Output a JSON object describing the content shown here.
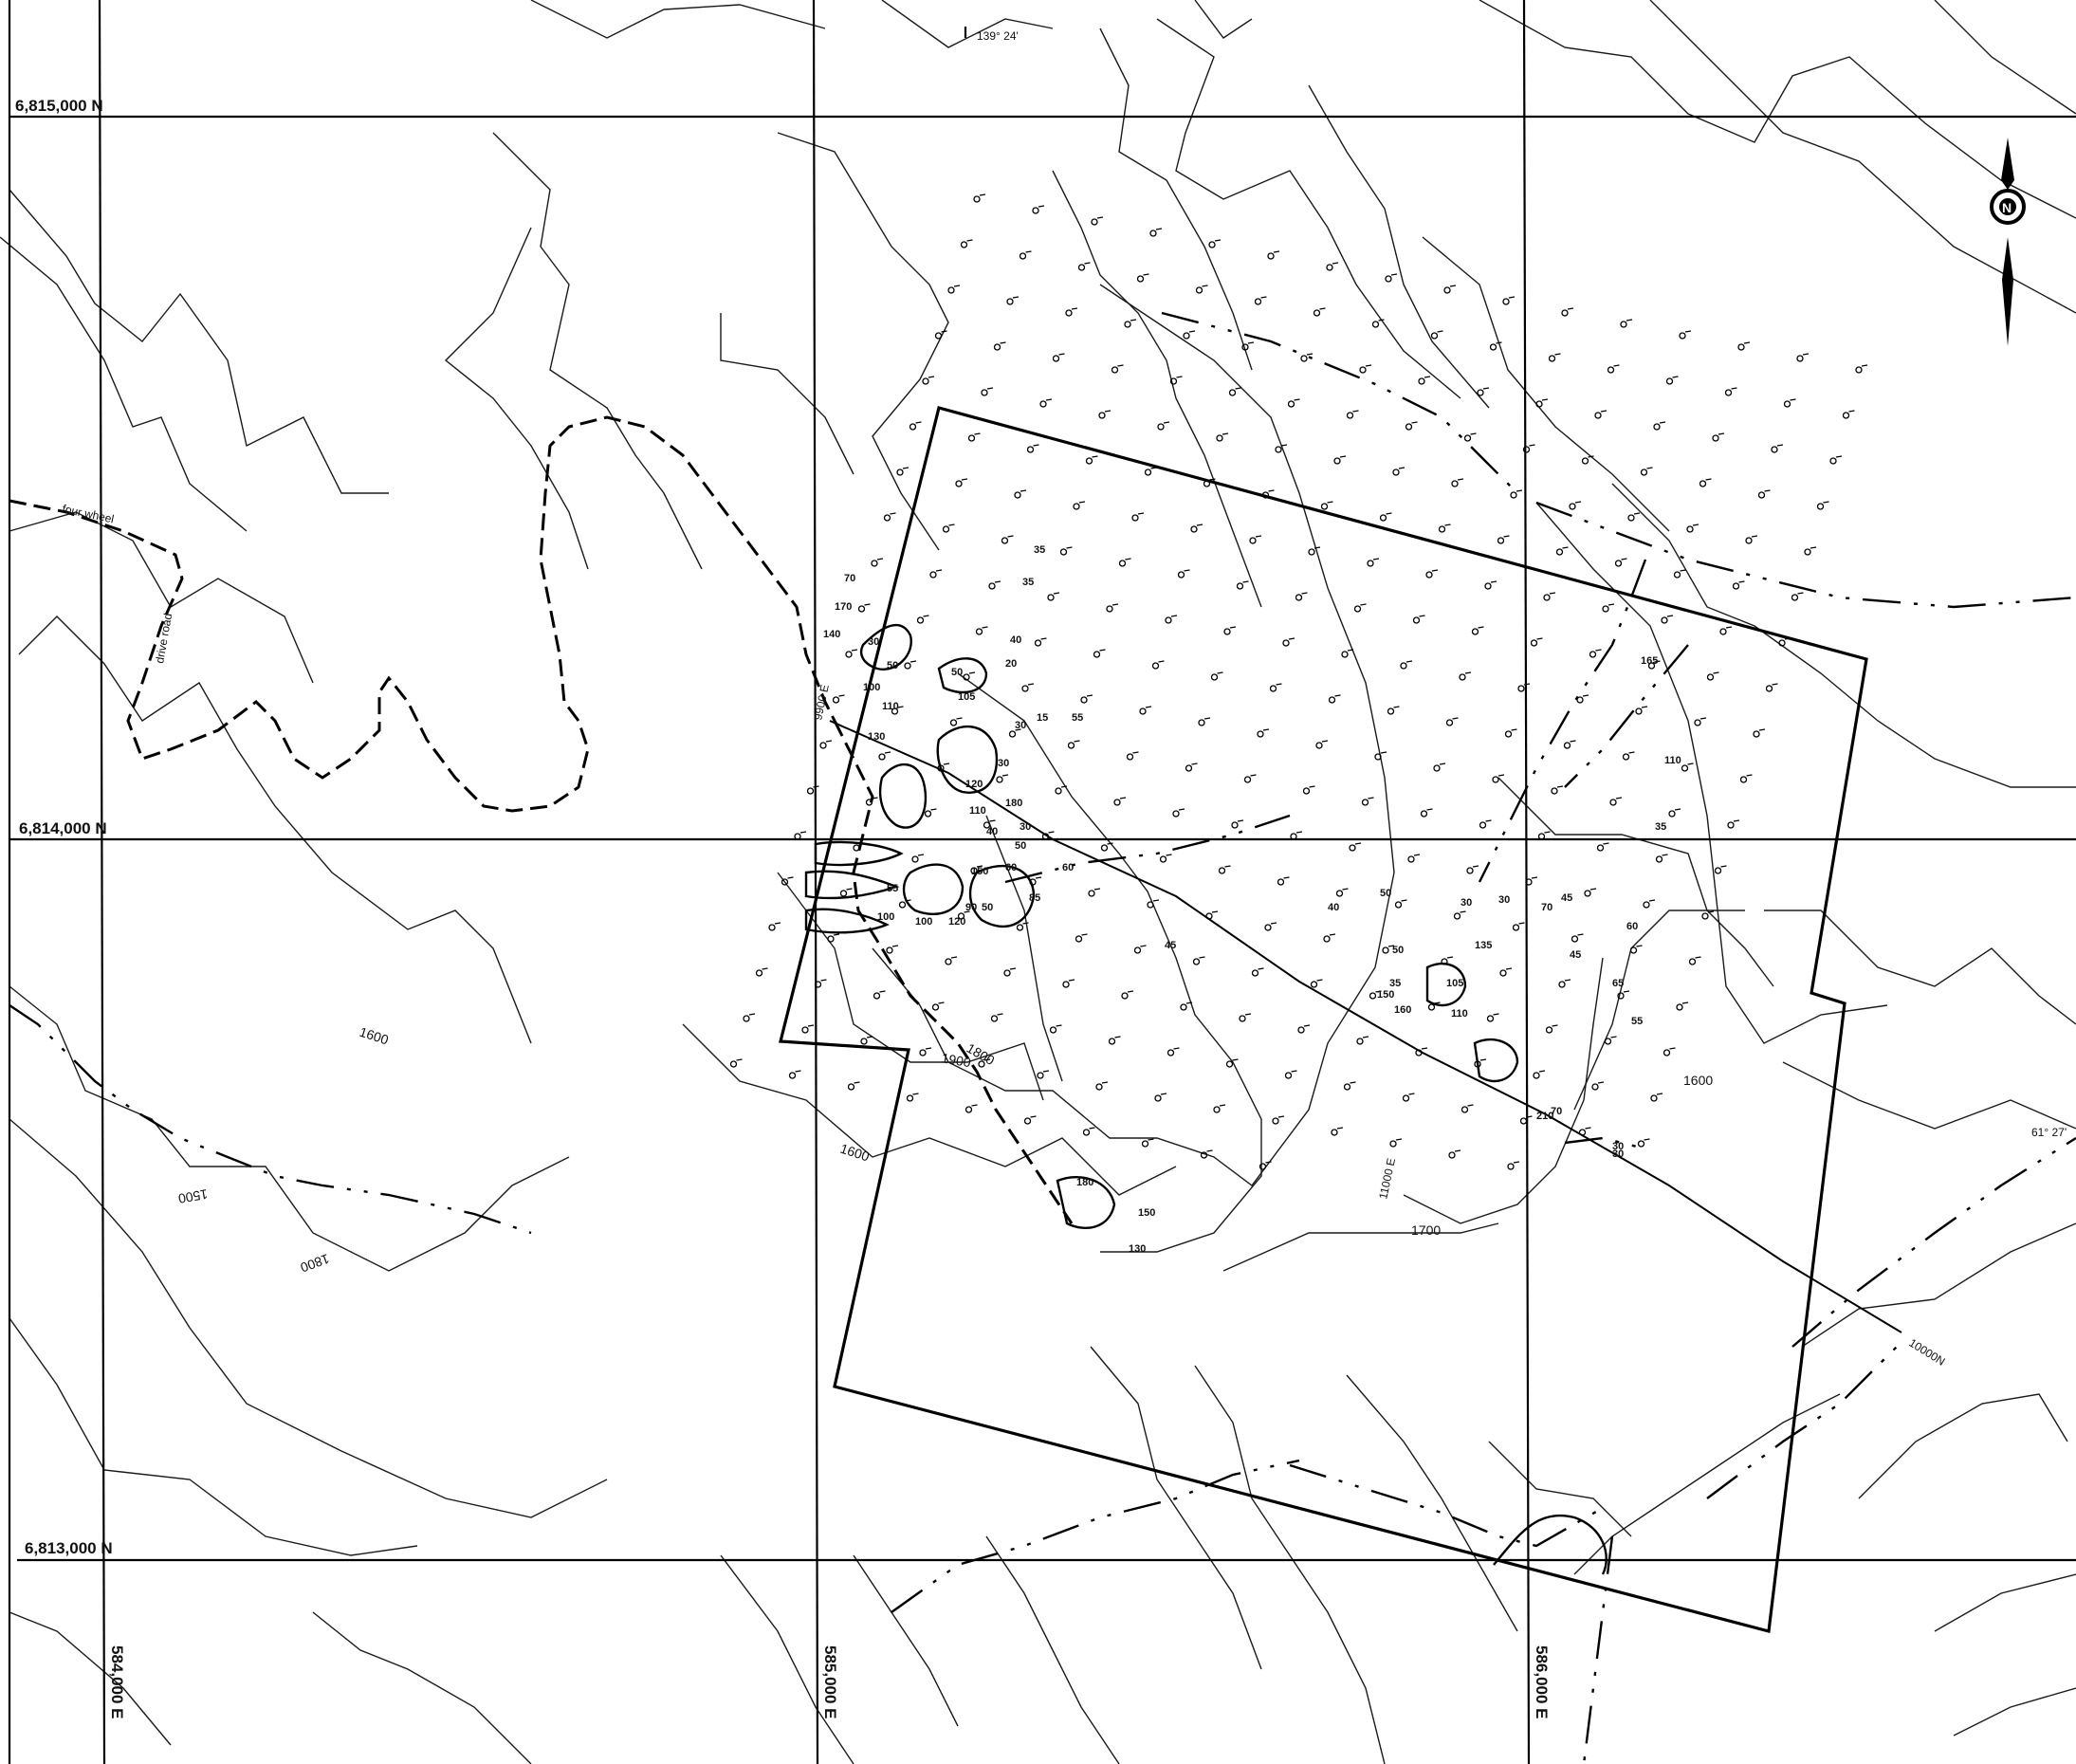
{
  "grid_labels": {
    "n_815": "6,815,000 N",
    "n_814": "6,814,000 N",
    "n_813": "6,813,000 N",
    "e_584": "584,000 E",
    "e_585": "585,000 E",
    "e_586": "586,000 E"
  },
  "coordinate_ticks": {
    "longitude": "139° 24'",
    "latitude": "61° 27'"
  },
  "contour_labels": [
    "1500",
    "1600",
    "1600",
    "1700",
    "1800",
    "1800",
    "1900",
    "1600"
  ],
  "road_labels": {
    "four_wheel": "four wheel",
    "drive_road": "drive road"
  },
  "line_labels": {
    "line_9900e": "9900 E",
    "line_11000e": "11000 E",
    "baseline": "10000N"
  },
  "north_arrow": {
    "icon": "compass-north-arrow",
    "letter": "N"
  },
  "sample_values": [
    "70",
    "170",
    "140",
    "30",
    "50",
    "110",
    "100",
    "130",
    "50",
    "105",
    "40",
    "30",
    "120",
    "110",
    "180",
    "150",
    "40",
    "50",
    "90",
    "100",
    "120",
    "50",
    "85",
    "60",
    "60",
    "30",
    "55",
    "100",
    "180",
    "150",
    "130",
    "35",
    "35",
    "20",
    "15",
    "30",
    "55",
    "45",
    "40",
    "50",
    "50",
    "35",
    "150",
    "160",
    "105",
    "110",
    "135",
    "30",
    "30",
    "45",
    "60",
    "65",
    "55",
    "45",
    "70",
    "110",
    "35",
    "165",
    "210",
    "70",
    "30",
    "30"
  ],
  "colors": {
    "ink": "#000000",
    "paper": "#ffffff"
  }
}
